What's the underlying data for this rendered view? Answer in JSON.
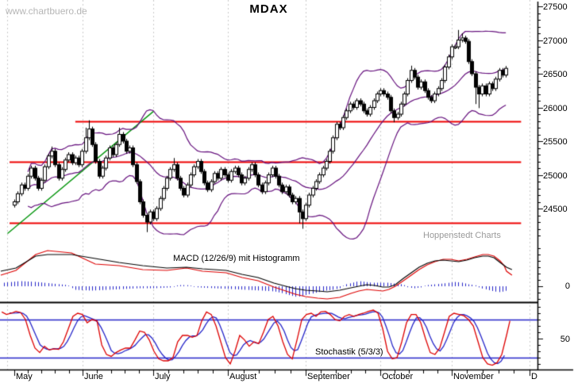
{
  "header": {
    "watermark": "www.chartbuero.de",
    "title": "MDAX",
    "credit": "Hoppenstedt Charts"
  },
  "colors": {
    "up_candle": "#ffffff",
    "down_candle": "#000000",
    "candle_outline": "#000000",
    "bollinger": "#65107d",
    "trendline": "#00940a",
    "resistance": "#ee0000",
    "macd_line": "#000000",
    "signal_line": "#dd0000",
    "histogram": "#2424c8",
    "stoch_k": "#dd0000",
    "stoch_d": "#2424c8",
    "level_lines": "#2424c8",
    "grid": "#c9c9c9",
    "axis": "#000000"
  },
  "time_axis": {
    "months": [
      {
        "label": "May",
        "day": 0
      },
      {
        "label": "June",
        "day": 20.1
      },
      {
        "label": "July",
        "day": 41
      },
      {
        "label": "August",
        "day": 63
      },
      {
        "label": "September",
        "day": 86
      },
      {
        "label": "October",
        "day": 108
      },
      {
        "label": "November",
        "day": 129
      },
      {
        "label": "D",
        "day": 152
      }
    ],
    "minor_ticks_per_gap": 4,
    "gridline_days": [
      -2.1,
      20.1,
      41,
      63,
      86,
      108,
      129,
      152
    ]
  },
  "chart_data": [
    {
      "type": "candlestick",
      "name": "MDAX daily price with Bollinger bands",
      "ylabel_ticks": [
        27500,
        27000,
        26500,
        26000,
        25500,
        25000,
        24500
      ],
      "minor_tick_step": 100,
      "ylim": [
        24010,
        27590
      ],
      "first_open": 24550,
      "closes": [
        24600,
        24720,
        24850,
        24800,
        24980,
        25100,
        24950,
        24800,
        24920,
        25120,
        25280,
        25350,
        25150,
        24950,
        25080,
        25220,
        25300,
        25180,
        25250,
        25150,
        25350,
        25550,
        25680,
        25450,
        25200,
        24980,
        25100,
        25250,
        25400,
        25300,
        25450,
        25600,
        25500,
        25350,
        25400,
        25150,
        24900,
        24600,
        24400,
        24300,
        24450,
        24350,
        24500,
        24650,
        24800,
        24950,
        25080,
        25150,
        24950,
        24800,
        24700,
        24850,
        25000,
        25120,
        25200,
        25050,
        24880,
        24780,
        24900,
        25020,
        24950,
        25080,
        25000,
        24920,
        25050,
        25100,
        25000,
        24880,
        24950,
        25080,
        25150,
        25000,
        24850,
        24750,
        24880,
        25000,
        25100,
        24980,
        24850,
        24750,
        24820,
        24700,
        24600,
        24650,
        24450,
        24350,
        24550,
        24700,
        24800,
        24900,
        25000,
        25100,
        25200,
        25350,
        25550,
        25750,
        25700,
        25850,
        25950,
        26050,
        26000,
        26100,
        26050,
        25950,
        25900,
        26000,
        26100,
        26200,
        26250,
        26200,
        26150,
        25950,
        25850,
        25900,
        26050,
        26200,
        26400,
        26550,
        26450,
        26300,
        26380,
        26250,
        26150,
        26100,
        26200,
        26280,
        26400,
        26600,
        26750,
        26900,
        26900,
        27000,
        27030,
        26980,
        26680,
        26500,
        26300,
        26200,
        26320,
        26200,
        26350,
        26280,
        26420,
        26550,
        26480,
        26580
      ],
      "default_wick": 35,
      "extremes": {
        "11": {
          "high": 25420
        },
        "21": {
          "high": 25700
        },
        "22": {
          "high": 25810
        },
        "31": {
          "high": 25700
        },
        "39": {
          "low": 24150
        },
        "47": {
          "high": 25250
        },
        "84": {
          "low": 24280
        },
        "85": {
          "low": 24200
        },
        "112": {
          "low": 25780
        },
        "117": {
          "high": 26620
        },
        "131": {
          "high": 27150
        },
        "132": {
          "high": 27100
        },
        "136": {
          "low": 26050
        },
        "137": {
          "low": 25990
        }
      },
      "bollinger": {
        "period": 20,
        "stdev_mult": 2
      },
      "trendline": {
        "from": [
          -2,
          24130
        ],
        "to": [
          41,
          25940
        ]
      },
      "resistance_lines": [
        {
          "value": 25790,
          "from_day": 18,
          "to_day": 149.5
        },
        {
          "value": 25190,
          "from_day": -1.4,
          "to_day": 149.5
        },
        {
          "value": 24290,
          "from_day": -1.4,
          "to_day": 149.5
        }
      ]
    },
    {
      "type": "line",
      "label": "MACD (12/26/9) mit Histogramm",
      "axis_label": "0",
      "zero_value": 0,
      "macd": [
        [
          -4,
          95
        ],
        [
          0.5,
          115
        ],
        [
          6.3,
          190
        ],
        [
          9.8,
          200
        ],
        [
          16.9,
          200
        ],
        [
          23.9,
          175
        ],
        [
          30.9,
          150
        ],
        [
          37.9,
          130
        ],
        [
          45,
          115
        ],
        [
          50.8,
          120
        ],
        [
          55.5,
          110
        ],
        [
          62.5,
          100
        ],
        [
          67.2,
          75
        ],
        [
          71.9,
          55
        ],
        [
          76.6,
          20
        ],
        [
          80.1,
          0
        ],
        [
          82.9,
          -15
        ],
        [
          85.9,
          -25
        ],
        [
          89.5,
          -30
        ],
        [
          92.3,
          -35
        ],
        [
          96,
          -25
        ],
        [
          99.3,
          -10
        ],
        [
          101.6,
          0
        ],
        [
          104,
          10
        ],
        [
          106.3,
          5
        ],
        [
          108.7,
          -5
        ],
        [
          110.5,
          -5
        ],
        [
          112.4,
          10
        ],
        [
          114.8,
          50
        ],
        [
          117.1,
          85
        ],
        [
          119.4,
          120
        ],
        [
          121.8,
          145
        ],
        [
          124.1,
          160
        ],
        [
          126.5,
          165
        ],
        [
          128.8,
          160
        ],
        [
          131.1,
          155
        ],
        [
          133.5,
          165
        ],
        [
          135.8,
          180
        ],
        [
          138.2,
          190
        ],
        [
          139.8,
          190
        ],
        [
          141.5,
          180
        ],
        [
          143.3,
          150
        ],
        [
          145.2,
          120
        ],
        [
          146.8,
          105
        ]
      ],
      "signal": [
        [
          -4,
          70
        ],
        [
          0.5,
          100
        ],
        [
          6.3,
          200
        ],
        [
          9.8,
          225
        ],
        [
          16.9,
          210
        ],
        [
          23.9,
          140
        ],
        [
          30.9,
          130
        ],
        [
          37.9,
          105
        ],
        [
          45,
          100
        ],
        [
          50.8,
          115
        ],
        [
          55.5,
          95
        ],
        [
          62.5,
          85
        ],
        [
          67.2,
          55
        ],
        [
          71.9,
          35
        ],
        [
          76.6,
          -5
        ],
        [
          80.1,
          -30
        ],
        [
          82.9,
          -50
        ],
        [
          85.9,
          -65
        ],
        [
          89.5,
          -75
        ],
        [
          92.3,
          -80
        ],
        [
          96,
          -70
        ],
        [
          99.3,
          -45
        ],
        [
          101.6,
          -30
        ],
        [
          104,
          -20
        ],
        [
          106.3,
          -25
        ],
        [
          108.7,
          -30
        ],
        [
          110.5,
          -20
        ],
        [
          112.4,
          0
        ],
        [
          114.8,
          35
        ],
        [
          117.1,
          70
        ],
        [
          119.4,
          105
        ],
        [
          121.8,
          135
        ],
        [
          124.1,
          155
        ],
        [
          126.5,
          170
        ],
        [
          128.8,
          170
        ],
        [
          131.1,
          160
        ],
        [
          133.5,
          170
        ],
        [
          135.8,
          185
        ],
        [
          138.2,
          200
        ],
        [
          139.8,
          200
        ],
        [
          141.5,
          190
        ],
        [
          143.3,
          160
        ],
        [
          144.5,
          130
        ],
        [
          145.2,
          95
        ],
        [
          146.8,
          70
        ]
      ],
      "histogram": [
        [
          -3,
          20
        ],
        [
          1.6,
          30
        ],
        [
          6.3,
          25
        ],
        [
          11,
          15
        ],
        [
          15.7,
          5
        ],
        [
          18,
          -20
        ],
        [
          22.7,
          -25
        ],
        [
          27.4,
          -20
        ],
        [
          32.1,
          -15
        ],
        [
          36.8,
          -10
        ],
        [
          41.4,
          -10
        ],
        [
          46.1,
          -5
        ],
        [
          48.5,
          5
        ],
        [
          50.8,
          5
        ],
        [
          54.3,
          -5
        ],
        [
          59,
          -10
        ],
        [
          63.7,
          -15
        ],
        [
          68.4,
          -20
        ],
        [
          73.1,
          -25
        ],
        [
          76.6,
          -30
        ],
        [
          78.9,
          -40
        ],
        [
          81.3,
          -55
        ],
        [
          83.4,
          -65
        ],
        [
          85.5,
          -55
        ],
        [
          87.6,
          -45
        ],
        [
          89.7,
          -35
        ],
        [
          91.8,
          -25
        ],
        [
          93.9,
          -20
        ],
        [
          96,
          -10
        ],
        [
          97.9,
          10
        ],
        [
          99.8,
          20
        ],
        [
          101.6,
          30
        ],
        [
          103.5,
          25
        ],
        [
          105.4,
          20
        ],
        [
          107.7,
          20
        ],
        [
          110.1,
          20
        ],
        [
          112,
          15
        ],
        [
          114.3,
          10
        ],
        [
          116.2,
          -5
        ],
        [
          118,
          -10
        ],
        [
          119.9,
          -5
        ],
        [
          121.8,
          5
        ],
        [
          124.1,
          10
        ],
        [
          126.5,
          15
        ],
        [
          128.3,
          20
        ],
        [
          130.2,
          25
        ],
        [
          132.1,
          20
        ],
        [
          134,
          10
        ],
        [
          135.8,
          5
        ],
        [
          137.7,
          -10
        ],
        [
          139.6,
          -20
        ],
        [
          141.5,
          -30
        ],
        [
          143.3,
          -35
        ],
        [
          145.2,
          -25
        ]
      ]
    },
    {
      "type": "line",
      "label": "Stochastik (5/3/3)",
      "axis_label": "50",
      "levels": [
        80,
        20
      ],
      "ylim": [
        0,
        100
      ],
      "k": [
        [
          -3.7,
          92
        ],
        [
          -2.3,
          88
        ],
        [
          -0.9,
          90
        ],
        [
          0.5,
          93
        ],
        [
          1.9,
          91
        ],
        [
          3.3,
          80
        ],
        [
          4.7,
          55
        ],
        [
          6.1,
          35
        ],
        [
          7.5,
          28
        ],
        [
          8.9,
          38
        ],
        [
          10.3,
          32
        ],
        [
          11.7,
          34
        ],
        [
          13.1,
          33
        ],
        [
          14.5,
          45
        ],
        [
          15.9,
          65
        ],
        [
          17.3,
          85
        ],
        [
          18.7,
          90
        ],
        [
          20.1,
          88
        ],
        [
          21.5,
          75
        ],
        [
          22.9,
          80
        ],
        [
          24.4,
          78
        ],
        [
          25.8,
          40
        ],
        [
          27.2,
          25
        ],
        [
          28.6,
          22
        ],
        [
          30,
          28
        ],
        [
          31.4,
          32
        ],
        [
          32.8,
          35
        ],
        [
          34.2,
          35
        ],
        [
          35.6,
          48
        ],
        [
          37,
          62
        ],
        [
          38.4,
          60
        ],
        [
          39.8,
          48
        ],
        [
          41.2,
          30
        ],
        [
          42.6,
          18
        ],
        [
          44,
          15
        ],
        [
          45.4,
          15
        ],
        [
          46.8,
          20
        ],
        [
          48.2,
          45
        ],
        [
          49.6,
          55
        ],
        [
          51.1,
          55
        ],
        [
          52.5,
          52
        ],
        [
          53.9,
          55
        ],
        [
          55.3,
          78
        ],
        [
          56.7,
          92
        ],
        [
          58.1,
          88
        ],
        [
          59.5,
          70
        ],
        [
          60.9,
          45
        ],
        [
          62.3,
          20
        ],
        [
          63.7,
          10
        ],
        [
          65.1,
          30
        ],
        [
          66.5,
          55
        ],
        [
          67.9,
          48
        ],
        [
          69.3,
          38
        ],
        [
          70.7,
          45
        ],
        [
          72.1,
          42
        ],
        [
          73.5,
          60
        ],
        [
          74.9,
          80
        ],
        [
          76.3,
          85
        ],
        [
          77.8,
          70
        ],
        [
          79.2,
          45
        ],
        [
          80.6,
          25
        ],
        [
          82,
          18
        ],
        [
          83.4,
          48
        ],
        [
          84.8,
          80
        ],
        [
          86.2,
          88
        ],
        [
          87.6,
          90
        ],
        [
          89,
          85
        ],
        [
          90.4,
          92
        ],
        [
          91.8,
          93
        ],
        [
          93.2,
          88
        ],
        [
          94.6,
          80
        ],
        [
          96,
          78
        ],
        [
          97.4,
          85
        ],
        [
          98.8,
          88
        ],
        [
          100.2,
          85
        ],
        [
          101.6,
          88
        ],
        [
          103,
          90
        ],
        [
          104.5,
          93
        ],
        [
          105.9,
          95
        ],
        [
          107.3,
          90
        ],
        [
          108.7,
          65
        ],
        [
          110.1,
          30
        ],
        [
          111.5,
          18
        ],
        [
          112.9,
          20
        ],
        [
          114.3,
          45
        ],
        [
          115.7,
          75
        ],
        [
          117.1,
          88
        ],
        [
          118.5,
          88
        ],
        [
          119.9,
          75
        ],
        [
          121.3,
          50
        ],
        [
          122.7,
          28
        ],
        [
          124.1,
          25
        ],
        [
          125.5,
          35
        ],
        [
          126.9,
          60
        ],
        [
          128.3,
          85
        ],
        [
          129.7,
          90
        ],
        [
          131.2,
          88
        ],
        [
          132.6,
          86
        ],
        [
          134,
          80
        ],
        [
          135.4,
          70
        ],
        [
          136.8,
          45
        ],
        [
          138.2,
          20
        ],
        [
          139.6,
          10
        ],
        [
          141,
          8
        ],
        [
          142.4,
          12
        ],
        [
          143.8,
          25
        ],
        [
          145.2,
          55
        ],
        [
          146.2,
          78
        ]
      ],
      "d_smoothing": "3-point smoothing of k with 1.5 day lag"
    }
  ]
}
